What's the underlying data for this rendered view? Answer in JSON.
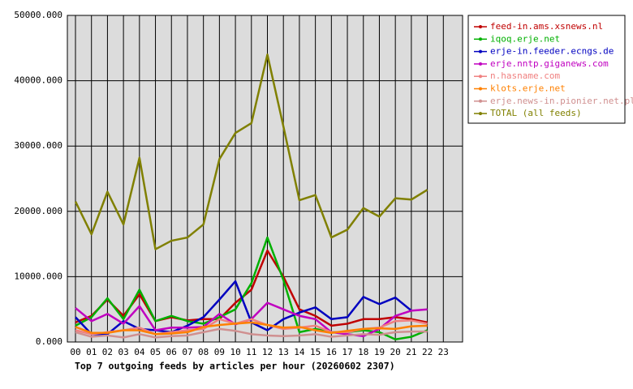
{
  "chart_data": {
    "type": "line",
    "title": "Top 7 outgoing feeds by articles per hour (20260602 2307)",
    "categories": [
      "00",
      "01",
      "02",
      "03",
      "04",
      "05",
      "06",
      "07",
      "08",
      "09",
      "10",
      "11",
      "12",
      "13",
      "14",
      "15",
      "16",
      "17",
      "18",
      "19",
      "20",
      "21",
      "22",
      "23"
    ],
    "ylim": [
      0,
      50000
    ],
    "yticks": [
      {
        "value": 0,
        "label": "0.000"
      },
      {
        "value": 10000,
        "label": "10000.000"
      },
      {
        "value": 20000,
        "label": "20000.000"
      },
      {
        "value": 30000,
        "label": "30000.000"
      },
      {
        "value": 40000,
        "label": "40000.000"
      },
      {
        "value": 50000,
        "label": "50000.000"
      }
    ],
    "grid": true,
    "legend": "right",
    "series": [
      {
        "name": "feed-in.ams.xsnews.nl",
        "color": "#c00000",
        "values": [
          3000,
          4000,
          6500,
          4000,
          7300,
          3200,
          3800,
          3300,
          3500,
          3500,
          6000,
          8000,
          14000,
          10000,
          5000,
          4000,
          2500,
          2800,
          3500,
          3500,
          3800,
          3500,
          3000,
          null
        ]
      },
      {
        "name": "iqoq.erje.net",
        "color": "#00b000",
        "values": [
          2500,
          3800,
          6700,
          3500,
          8000,
          3200,
          4000,
          3200,
          2800,
          3800,
          5000,
          9000,
          16000,
          9500,
          1500,
          2000,
          1500,
          1500,
          1800,
          1500,
          400,
          800,
          1800,
          null
        ]
      },
      {
        "name": "erje-in.feeder.ecngs.de",
        "color": "#0000c0",
        "values": [
          3800,
          1200,
          1200,
          3200,
          2000,
          1800,
          1500,
          2500,
          3800,
          6500,
          9300,
          3000,
          1800,
          3500,
          4500,
          5300,
          3500,
          3800,
          6900,
          5800,
          6800,
          4800,
          null,
          null
        ]
      },
      {
        "name": "erje.nntp.giganews.com",
        "color": "#c000c0",
        "values": [
          5200,
          3200,
          4300,
          2800,
          5500,
          1800,
          2200,
          2200,
          2300,
          4300,
          2700,
          3500,
          6000,
          5000,
          4000,
          3500,
          1500,
          1200,
          900,
          2000,
          4000,
          4800,
          5000,
          null
        ]
      },
      {
        "name": "n.hasname.com",
        "color": "#f08080",
        "values": [
          1800,
          1200,
          1500,
          1800,
          2200,
          1200,
          1500,
          1800,
          2000,
          3500,
          2800,
          3500,
          2600,
          2000,
          2200,
          2500,
          1500,
          1500,
          2000,
          2200,
          3200,
          3300,
          2800,
          null
        ]
      },
      {
        "name": "klots.erje.net",
        "color": "#ff8000",
        "values": [
          2300,
          1400,
          1400,
          1800,
          1800,
          1200,
          1300,
          1500,
          2300,
          2600,
          2800,
          3000,
          2600,
          2200,
          2300,
          1800,
          1400,
          1700,
          2000,
          2100,
          2000,
          2400,
          2500,
          null
        ]
      },
      {
        "name": "erje.news-in.pionier.net.pl",
        "color": "#d09090",
        "values": [
          1500,
          800,
          1000,
          700,
          1200,
          700,
          900,
          1000,
          1500,
          2000,
          1700,
          1200,
          1000,
          900,
          1000,
          1200,
          800,
          1000,
          1200,
          1100,
          1500,
          1600,
          1600,
          null
        ]
      },
      {
        "name": "TOTAL (all feeds)",
        "color": "#808000",
        "values": [
          21500,
          16500,
          23000,
          18000,
          28200,
          14200,
          15500,
          16000,
          18000,
          28000,
          32000,
          33500,
          44000,
          33000,
          21700,
          22500,
          16000,
          17200,
          20500,
          19200,
          22000,
          21800,
          23300,
          null
        ]
      }
    ]
  }
}
